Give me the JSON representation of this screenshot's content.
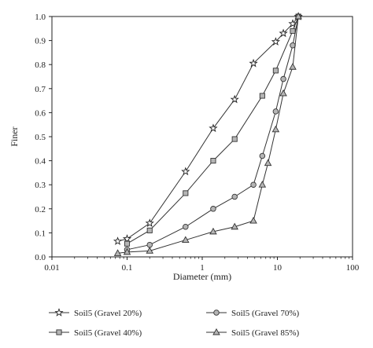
{
  "chart_data": {
    "type": "line",
    "xlabel": "Diameter (mm)",
    "ylabel": "Finer",
    "xscale": "log",
    "xlim": [
      0.01,
      100
    ],
    "ylim": [
      0,
      1.0
    ],
    "x_ticks": [
      0.01,
      0.1,
      1,
      10,
      100
    ],
    "x_tick_labels": [
      "0.01",
      "0.1",
      "1",
      "10",
      "100"
    ],
    "y_ticks": [
      0,
      0.1,
      0.2,
      0.3,
      0.4,
      0.5,
      0.6,
      0.7,
      0.8,
      0.9,
      1.0
    ],
    "y_tick_labels": [
      "0.0",
      "0.1",
      "0.2",
      "0.3",
      "0.4",
      "0.5",
      "0.6",
      "0.7",
      "0.8",
      "0.9",
      "1.0"
    ],
    "grid": false,
    "legend_position": "bottom",
    "series": [
      {
        "name": "Soil5 (Gravel 20%)",
        "marker": "star",
        "x": [
          0.075,
          0.1,
          0.2,
          0.6,
          1.4,
          2.7,
          4.8,
          9.5,
          12,
          16,
          19
        ],
        "y": [
          0.065,
          0.075,
          0.14,
          0.355,
          0.535,
          0.655,
          0.805,
          0.895,
          0.93,
          0.97,
          1.0
        ]
      },
      {
        "name": "Soil5 (Gravel 40%)",
        "marker": "square",
        "x": [
          0.1,
          0.2,
          0.6,
          1.4,
          2.7,
          6.3,
          9.5,
          16,
          19
        ],
        "y": [
          0.055,
          0.11,
          0.265,
          0.4,
          0.49,
          0.67,
          0.775,
          0.94,
          1.0
        ]
      },
      {
        "name": "Soil5 (Gravel 70%)",
        "marker": "circle",
        "x": [
          0.1,
          0.2,
          0.6,
          1.4,
          2.7,
          4.8,
          6.3,
          9.5,
          12,
          16,
          19
        ],
        "y": [
          0.03,
          0.05,
          0.125,
          0.2,
          0.25,
          0.3,
          0.42,
          0.605,
          0.74,
          0.88,
          1.0
        ]
      },
      {
        "name": "Soil5 (Gravel 85%)",
        "marker": "triangle",
        "x": [
          0.075,
          0.1,
          0.2,
          0.6,
          1.4,
          2.7,
          4.8,
          6.3,
          7.5,
          9.5,
          12,
          16,
          19
        ],
        "y": [
          0.015,
          0.02,
          0.025,
          0.07,
          0.105,
          0.125,
          0.15,
          0.3,
          0.39,
          0.53,
          0.68,
          0.79,
          1.0
        ]
      }
    ]
  }
}
